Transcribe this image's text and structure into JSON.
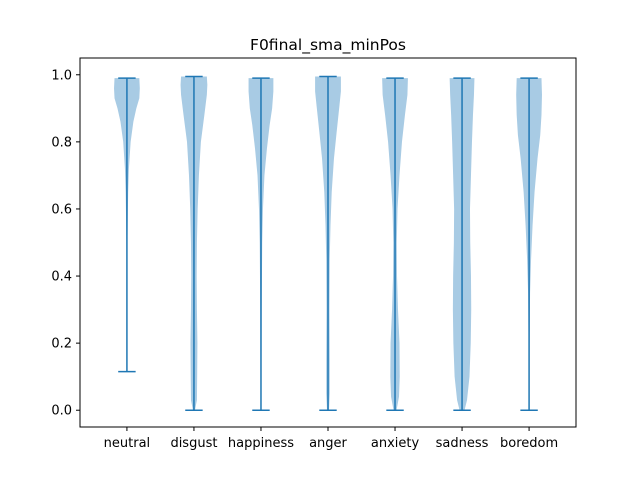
{
  "chart_data": {
    "type": "violin",
    "title": "F0final_sma_minPos",
    "xlabel": "",
    "ylabel": "",
    "ylim": [
      -0.05,
      1.05
    ],
    "yticks": [
      0.0,
      0.2,
      0.4,
      0.6,
      0.8,
      1.0
    ],
    "ytick_labels": [
      "0.0",
      "0.2",
      "0.4",
      "0.6",
      "0.8",
      "1.0"
    ],
    "categories": [
      "neutral",
      "disgust",
      "happiness",
      "anger",
      "anxiety",
      "sadness",
      "boredom"
    ],
    "colors": {
      "body": "#a8cbe4",
      "line": "#1f77b4"
    },
    "series": [
      {
        "category": "neutral",
        "min": 0.115,
        "max": 0.99,
        "density": [
          [
            0.115,
            0.0
          ],
          [
            0.3,
            0.01
          ],
          [
            0.5,
            0.02
          ],
          [
            0.65,
            0.05
          ],
          [
            0.72,
            0.08
          ],
          [
            0.8,
            0.15
          ],
          [
            0.86,
            0.26
          ],
          [
            0.9,
            0.38
          ],
          [
            0.93,
            0.5
          ],
          [
            0.96,
            0.52
          ],
          [
            0.99,
            0.5
          ]
        ]
      },
      {
        "category": "disgust",
        "min": 0.0,
        "max": 0.995,
        "density": [
          [
            0.0,
            0.04
          ],
          [
            0.03,
            0.12
          ],
          [
            0.1,
            0.13
          ],
          [
            0.2,
            0.14
          ],
          [
            0.3,
            0.12
          ],
          [
            0.4,
            0.11
          ],
          [
            0.5,
            0.12
          ],
          [
            0.6,
            0.15
          ],
          [
            0.7,
            0.2
          ],
          [
            0.8,
            0.28
          ],
          [
            0.88,
            0.42
          ],
          [
            0.94,
            0.52
          ],
          [
            0.97,
            0.54
          ],
          [
            0.995,
            0.52
          ]
        ]
      },
      {
        "category": "happiness",
        "min": 0.0,
        "max": 0.99,
        "density": [
          [
            0.0,
            0.01
          ],
          [
            0.1,
            0.02
          ],
          [
            0.3,
            0.03
          ],
          [
            0.5,
            0.05
          ],
          [
            0.6,
            0.08
          ],
          [
            0.7,
            0.14
          ],
          [
            0.78,
            0.24
          ],
          [
            0.85,
            0.35
          ],
          [
            0.9,
            0.45
          ],
          [
            0.95,
            0.5
          ],
          [
            0.99,
            0.5
          ]
        ]
      },
      {
        "category": "anger",
        "min": 0.0,
        "max": 0.995,
        "density": [
          [
            0.0,
            0.04
          ],
          [
            0.05,
            0.07
          ],
          [
            0.15,
            0.07
          ],
          [
            0.3,
            0.06
          ],
          [
            0.45,
            0.07
          ],
          [
            0.55,
            0.1
          ],
          [
            0.65,
            0.15
          ],
          [
            0.75,
            0.24
          ],
          [
            0.83,
            0.35
          ],
          [
            0.9,
            0.45
          ],
          [
            0.95,
            0.52
          ],
          [
            0.995,
            0.52
          ]
        ]
      },
      {
        "category": "anxiety",
        "min": 0.0,
        "max": 0.99,
        "density": [
          [
            0.0,
            0.06
          ],
          [
            0.04,
            0.16
          ],
          [
            0.1,
            0.19
          ],
          [
            0.2,
            0.18
          ],
          [
            0.3,
            0.12
          ],
          [
            0.4,
            0.08
          ],
          [
            0.5,
            0.07
          ],
          [
            0.6,
            0.1
          ],
          [
            0.7,
            0.18
          ],
          [
            0.8,
            0.28
          ],
          [
            0.88,
            0.4
          ],
          [
            0.94,
            0.5
          ],
          [
            0.99,
            0.52
          ]
        ]
      },
      {
        "category": "sadness",
        "min": 0.0,
        "max": 0.99,
        "density": [
          [
            0.0,
            0.1
          ],
          [
            0.03,
            0.2
          ],
          [
            0.1,
            0.3
          ],
          [
            0.2,
            0.35
          ],
          [
            0.3,
            0.37
          ],
          [
            0.4,
            0.36
          ],
          [
            0.5,
            0.33
          ],
          [
            0.6,
            0.32
          ],
          [
            0.7,
            0.36
          ],
          [
            0.8,
            0.4
          ],
          [
            0.88,
            0.44
          ],
          [
            0.94,
            0.48
          ],
          [
            0.99,
            0.5
          ]
        ]
      },
      {
        "category": "boredom",
        "min": 0.0,
        "max": 0.99,
        "density": [
          [
            0.0,
            0.01
          ],
          [
            0.2,
            0.02
          ],
          [
            0.35,
            0.04
          ],
          [
            0.45,
            0.08
          ],
          [
            0.55,
            0.14
          ],
          [
            0.65,
            0.22
          ],
          [
            0.75,
            0.34
          ],
          [
            0.82,
            0.45
          ],
          [
            0.88,
            0.5
          ],
          [
            0.94,
            0.52
          ],
          [
            0.99,
            0.5
          ]
        ]
      }
    ]
  }
}
